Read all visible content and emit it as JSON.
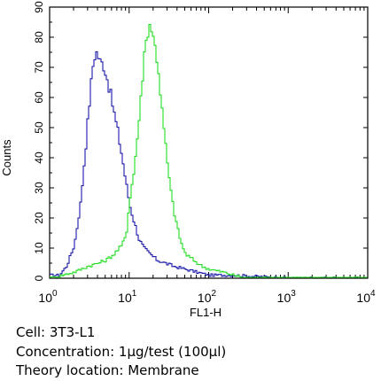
{
  "chart_data": {
    "type": "line",
    "title": "",
    "xlabel": "FL1-H",
    "ylabel": "Counts",
    "x_scale": "log",
    "xlim": [
      1,
      10000
    ],
    "ylim": [
      0,
      90
    ],
    "x_ticks": [
      {
        "base": "10",
        "exp": "0",
        "value": 1
      },
      {
        "base": "10",
        "exp": "1",
        "value": 10
      },
      {
        "base": "10",
        "exp": "2",
        "value": 100
      },
      {
        "base": "10",
        "exp": "3",
        "value": 1000
      },
      {
        "base": "10",
        "exp": "4",
        "value": 10000
      }
    ],
    "y_ticks": [
      "0",
      "10",
      "20",
      "30",
      "40",
      "50",
      "60",
      "70",
      "80",
      "90"
    ],
    "grid": false,
    "legend": "none",
    "series": [
      {
        "color": "#1a1aa8",
        "x": [
          1.0,
          1.3,
          1.6,
          2.0,
          2.4,
          2.8,
          3.2,
          3.5,
          3.8,
          4.2,
          4.6,
          5.0,
          5.6,
          6.3,
          7.1,
          8.0,
          9.0,
          10.0,
          11.5,
          13,
          15,
          18,
          22,
          28,
          35,
          50,
          70,
          100,
          200,
          1000,
          10000
        ],
        "y": [
          1,
          1,
          4,
          11,
          25,
          45,
          63,
          73,
          75,
          72,
          71,
          68,
          62,
          55,
          48,
          40,
          31,
          24,
          18,
          13,
          10,
          8,
          6,
          5,
          4,
          3,
          2,
          1,
          1,
          0,
          0
        ]
      },
      {
        "color": "#22dd22",
        "x": [
          1.0,
          2.0,
          3.0,
          4.0,
          5.0,
          6.3,
          8.0,
          9.0,
          10.0,
          11.2,
          12.5,
          14.0,
          15.0,
          16.5,
          18.0,
          19.5,
          21.0,
          23.0,
          25.0,
          28.0,
          32,
          36,
          40,
          45,
          50,
          63,
          80,
          100,
          150,
          200,
          300,
          1000,
          10000
        ],
        "y": [
          0,
          2,
          4,
          5,
          6,
          8,
          11,
          15,
          27,
          35,
          48,
          62,
          74,
          81,
          85,
          80,
          76,
          68,
          57,
          44,
          30,
          22,
          16,
          11,
          8,
          6,
          4,
          3,
          2,
          1,
          0,
          0,
          0
        ]
      }
    ]
  },
  "caption": {
    "cell": "Cell: 3T3-L1",
    "concentration": "Concentration: 1µg/test (100µl)",
    "location": "Theory location: Membrane"
  }
}
